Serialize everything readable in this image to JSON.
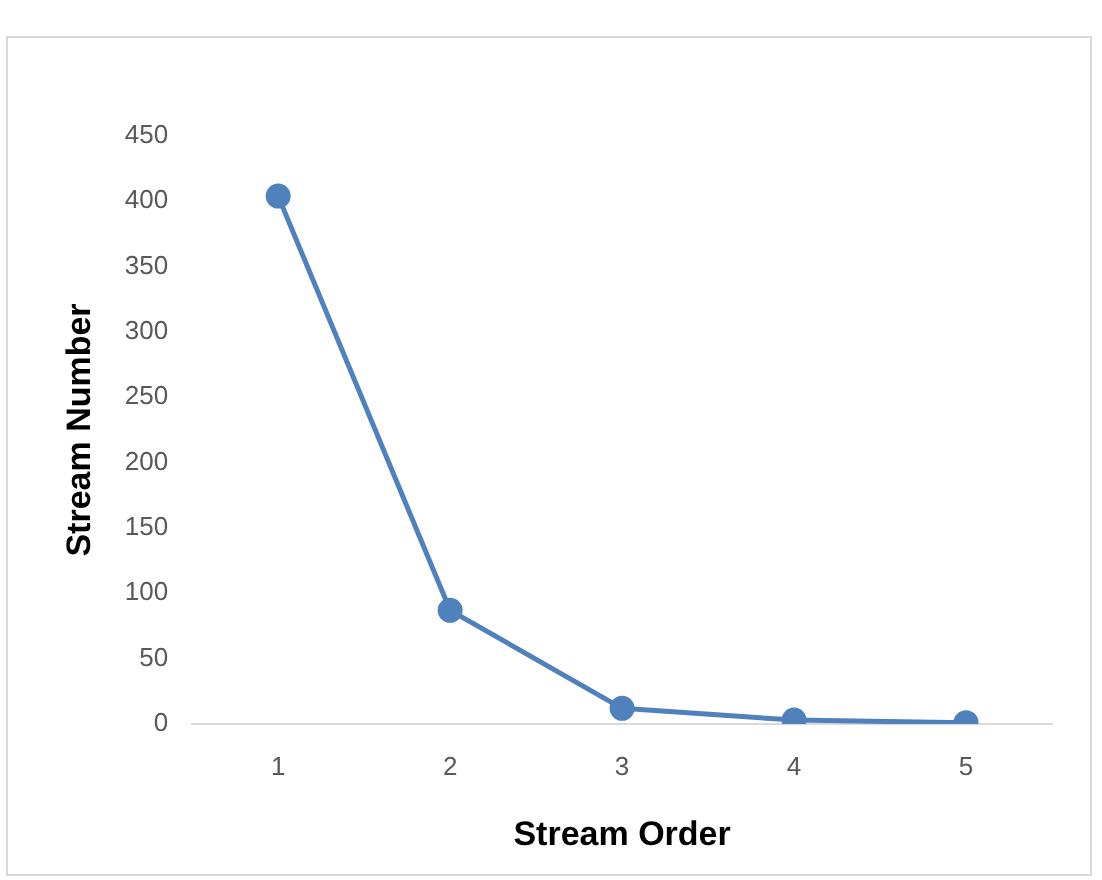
{
  "chart_data": {
    "type": "line",
    "xlabel": "Stream Order",
    "ylabel": "Stream Number",
    "categories": [
      "1",
      "2",
      "3",
      "4",
      "5"
    ],
    "series": [
      {
        "color": "#4f81bd",
        "values": [
          404,
          87,
          12,
          3,
          1
        ]
      }
    ],
    "ylim": [
      0,
      450
    ],
    "yticks": [
      0,
      50,
      100,
      150,
      200,
      250,
      300,
      350,
      400,
      450
    ],
    "grid": false,
    "legend": false,
    "marker": "circle",
    "line_style": "solid"
  }
}
